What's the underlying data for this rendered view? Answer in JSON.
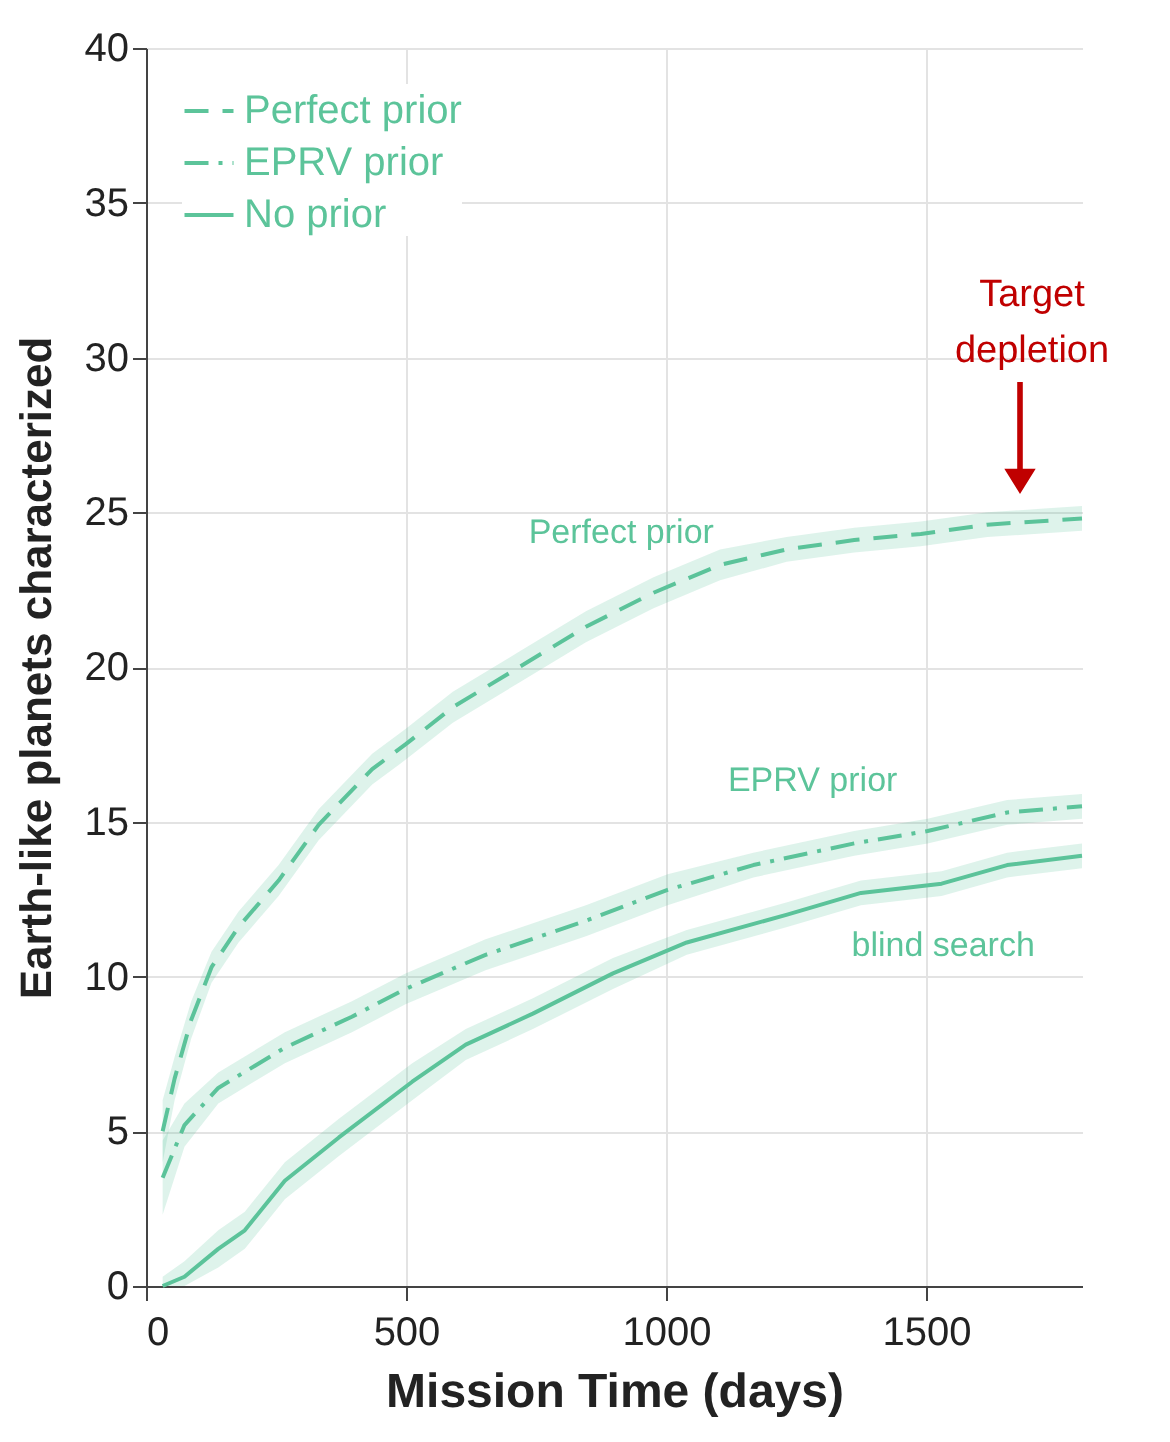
{
  "chart_data": {
    "type": "line",
    "xlabel": "Mission Time (days)",
    "ylabel": "Earth-like planets characterized",
    "xlim": [
      0,
      1800
    ],
    "xticks": [
      0,
      500,
      1000,
      1500
    ],
    "ylim": [
      0,
      40
    ],
    "yticks": [
      0,
      5,
      10,
      15,
      20,
      25,
      30,
      35,
      40
    ],
    "grid": true,
    "legend": "top left",
    "series": [
      {
        "name": "Perfect prior",
        "color": "#5cc49a",
        "line_style": "dashed",
        "x": [
          32,
          55,
          87,
          126,
          178,
          255,
          332,
          435,
          499,
          590,
          718,
          846,
          976,
          1104,
          1232,
          1362,
          1490,
          1618,
          1800
        ],
        "values": [
          5.0,
          6.7,
          8.6,
          10.3,
          11.6,
          13.1,
          14.9,
          16.7,
          17.5,
          18.7,
          20.0,
          21.3,
          22.4,
          23.3,
          23.8,
          24.1,
          24.3,
          24.6,
          24.8
        ],
        "lower": [
          4.0,
          6.0,
          8.0,
          9.8,
          11.1,
          12.6,
          14.4,
          16.2,
          17.0,
          18.2,
          19.5,
          20.8,
          21.9,
          22.8,
          23.4,
          23.7,
          23.9,
          24.2,
          24.4
        ],
        "upper": [
          6.0,
          7.4,
          9.2,
          10.8,
          12.1,
          13.6,
          15.4,
          17.2,
          18.0,
          19.2,
          20.5,
          21.8,
          22.9,
          23.8,
          24.2,
          24.5,
          24.7,
          25.0,
          25.2
        ]
      },
      {
        "name": "EPRV prior",
        "color": "#5cc49a",
        "line_style": "dashdot",
        "x": [
          32,
          74,
          139,
          267,
          396,
          499,
          653,
          846,
          1003,
          1168,
          1362,
          1503,
          1656,
          1800
        ],
        "values": [
          3.5,
          5.2,
          6.4,
          7.7,
          8.7,
          9.6,
          10.7,
          11.8,
          12.8,
          13.6,
          14.3,
          14.7,
          15.3,
          15.5
        ],
        "lower": [
          2.3,
          4.5,
          5.9,
          7.2,
          8.2,
          9.1,
          10.2,
          11.3,
          12.3,
          13.2,
          13.9,
          14.3,
          14.9,
          15.1
        ],
        "upper": [
          4.7,
          5.9,
          6.9,
          8.2,
          9.2,
          10.1,
          11.2,
          12.3,
          13.3,
          14.0,
          14.7,
          15.1,
          15.7,
          15.9
        ]
      },
      {
        "name": "No prior",
        "color": "#5cc49a",
        "line_style": "solid",
        "x": [
          32,
          74,
          139,
          190,
          267,
          371,
          512,
          615,
          744,
          898,
          1040,
          1233,
          1375,
          1530,
          1656,
          1800
        ],
        "values": [
          0,
          0.3,
          1.2,
          1.8,
          3.4,
          4.8,
          6.6,
          7.8,
          8.8,
          10.1,
          11.1,
          12.0,
          12.7,
          13.0,
          13.6,
          13.9
        ],
        "lower": [
          0,
          0,
          0.6,
          1.2,
          2.8,
          4.2,
          6.0,
          7.3,
          8.3,
          9.6,
          10.7,
          11.6,
          12.3,
          12.6,
          13.2,
          13.5
        ],
        "upper": [
          0.3,
          0.8,
          1.8,
          2.4,
          4.0,
          5.4,
          7.2,
          8.3,
          9.3,
          10.6,
          11.5,
          12.4,
          13.1,
          13.4,
          14.0,
          14.3
        ]
      }
    ],
    "annotations": [
      {
        "text": "Perfect prior",
        "x": 914,
        "y": 22.0
      },
      {
        "text": "EPRV prior",
        "x": 1282,
        "y": 14.0
      },
      {
        "text": "blind search",
        "x": 1533,
        "y": 13.0
      },
      "Target depletion"
    ]
  }
}
